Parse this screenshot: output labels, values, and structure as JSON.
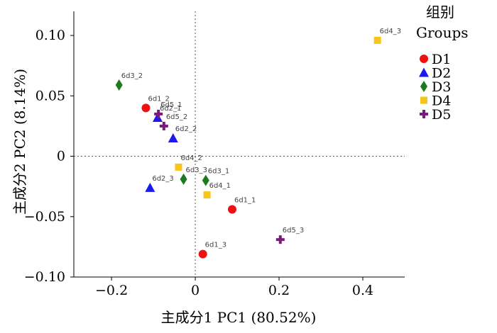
{
  "chart_data": {
    "type": "scatter",
    "xlabel": "主成分1 PC1 (80.52%)",
    "ylabel": "主成分2 PC2 (8.14%)",
    "xlim": [
      -0.29,
      0.5
    ],
    "ylim": [
      -0.1,
      0.12
    ],
    "xticks": [
      {
        "value": -0.2,
        "label": "−0.2"
      },
      {
        "value": 0.0,
        "label": "0"
      },
      {
        "value": 0.2,
        "label": "0.2"
      },
      {
        "value": 0.4,
        "label": "0.4"
      }
    ],
    "yticks": [
      {
        "value": 0.1,
        "label": "0.10"
      },
      {
        "value": 0.05,
        "label": "0.05"
      },
      {
        "value": 0.0,
        "label": "0"
      },
      {
        "value": -0.05,
        "label": "−0.05"
      },
      {
        "value": -0.1,
        "label": "−0.10"
      }
    ],
    "zero_lines": true,
    "grid": false,
    "legend": {
      "title_cn": "组别",
      "title_en": "Groups",
      "placement": "right"
    },
    "series": [
      {
        "name": "D1",
        "color": "#ee1111",
        "marker": "circle",
        "points": [
          {
            "x": -0.118,
            "y": 0.04,
            "label": "6d1_2"
          },
          {
            "x": 0.088,
            "y": -0.044,
            "label": "6d1_1"
          },
          {
            "x": 0.018,
            "y": -0.081,
            "label": "6d1_3"
          }
        ]
      },
      {
        "name": "D2",
        "color": "#1a1aee",
        "marker": "triangle",
        "points": [
          {
            "x": -0.09,
            "y": 0.032,
            "label": "6d2_1"
          },
          {
            "x": -0.053,
            "y": 0.015,
            "label": "6d2_2"
          },
          {
            "x": -0.108,
            "y": -0.026,
            "label": "6d2_3"
          }
        ]
      },
      {
        "name": "D3",
        "color": "#1e7a1e",
        "marker": "diamond",
        "points": [
          {
            "x": -0.182,
            "y": 0.059,
            "label": "6d3_2"
          },
          {
            "x": 0.025,
            "y": -0.02,
            "label": "6d3_1"
          },
          {
            "x": -0.028,
            "y": -0.019,
            "label": "6d3_3"
          }
        ]
      },
      {
        "name": "D4",
        "color": "#f5c518",
        "marker": "square",
        "points": [
          {
            "x": 0.435,
            "y": 0.096,
            "label": "6d4_3"
          },
          {
            "x": -0.04,
            "y": -0.009,
            "label": "6d4_2"
          },
          {
            "x": 0.028,
            "y": -0.032,
            "label": "6d4_1"
          }
        ]
      },
      {
        "name": "D5",
        "color": "#7a1a7a",
        "marker": "plus",
        "points": [
          {
            "x": -0.088,
            "y": 0.035,
            "label": "6d5_1"
          },
          {
            "x": -0.075,
            "y": 0.025,
            "label": "6d5_2"
          },
          {
            "x": 0.203,
            "y": -0.069,
            "label": "6d5_3"
          }
        ]
      }
    ]
  }
}
